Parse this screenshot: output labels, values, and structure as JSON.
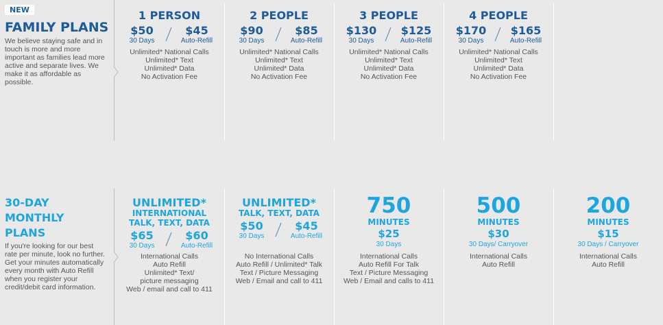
{
  "family": {
    "badge": "NEW",
    "title": "FAMILY PLANS",
    "description": [
      "We believe staying safe and in",
      "touch is more and more",
      "important as families lead more",
      "active and separate lives. We",
      "make it as affordable as",
      "possible."
    ],
    "plans": [
      {
        "name": "1 PERSON",
        "price": "$50",
        "price_label": "30 Days",
        "auto_price": "$45",
        "auto_label": "Auto-Refill",
        "features": [
          "Unlimited* National Calls",
          "Unlimited* Text",
          "Unlimited* Data",
          "No Activation Fee"
        ]
      },
      {
        "name": "2 PEOPLE",
        "price": "$90",
        "price_label": "30 Days",
        "auto_price": "$85",
        "auto_label": "Auto-Refill",
        "features": [
          "Unlimited* National Calls",
          "Unlimited* Text",
          "Unlimited* Data",
          "No Activation Fee"
        ]
      },
      {
        "name": "3 PEOPLE",
        "price": "$130",
        "price_label": "30 Days",
        "auto_price": "$125",
        "auto_label": "Auto-Refill",
        "features": [
          "Unlimited* National Calls",
          "Unlimited* Text",
          "Unlimited* Data",
          "No Activation Fee"
        ]
      },
      {
        "name": "4 PEOPLE",
        "price": "$170",
        "price_label": "30 Days",
        "auto_price": "$165",
        "auto_label": "Auto-Refill",
        "features": [
          "Unlimited* National Calls",
          "Unlimited* Text",
          "Unlimited* Data",
          "No Activation Fee"
        ]
      }
    ]
  },
  "monthly": {
    "title": [
      "30-DAY",
      "MONTHLY",
      "PLANS"
    ],
    "description": [
      "If you're looking for our best",
      "rate per minute, look no further.",
      "Get your minutes automatically",
      "every month with Auto Refill",
      "when you register your",
      "credit/debit card information."
    ],
    "unlimited_plans": [
      {
        "heading": "UNLIMITED*",
        "subheading": [
          "INTERNATIONAL",
          "TALK, TEXT, DATA"
        ],
        "price": "$65",
        "price_label": "30 Days",
        "auto_price": "$60",
        "auto_label": "Auto-Refill",
        "features": [
          "International Calls",
          "Auto Refill",
          "Unlimited* Text/",
          "picture messaging",
          "Web / email and call to 411"
        ]
      },
      {
        "heading": "UNLIMITED*",
        "subheading": [
          "TALK, TEXT, DATA"
        ],
        "price": "$50",
        "price_label": "30 Days",
        "auto_price": "$45",
        "auto_label": "Auto-Refill",
        "features": [
          "No International Calls",
          "Auto Refill / Unlimited* Talk",
          "Text / Picture Messaging",
          "Web / Email and call to 411"
        ]
      }
    ],
    "minute_plans": [
      {
        "minutes": "750",
        "unit": "MINUTES",
        "price": "$25",
        "price_label": "30 Days",
        "features": [
          "International Calls",
          "Auto Refill For Talk",
          "Text / Picture Messaging",
          "Web / Email and calls to 411"
        ]
      },
      {
        "minutes": "500",
        "unit": "MINUTES",
        "price": "$30",
        "price_label": "30 Days/ Carryover",
        "features": [
          "International Calls",
          "Auto Refill"
        ]
      },
      {
        "minutes": "200",
        "unit": "MINUTES",
        "price": "$15",
        "price_label": "30 Days / Carryover",
        "features": [
          "International Calls",
          "Auto Refill"
        ]
      }
    ]
  }
}
